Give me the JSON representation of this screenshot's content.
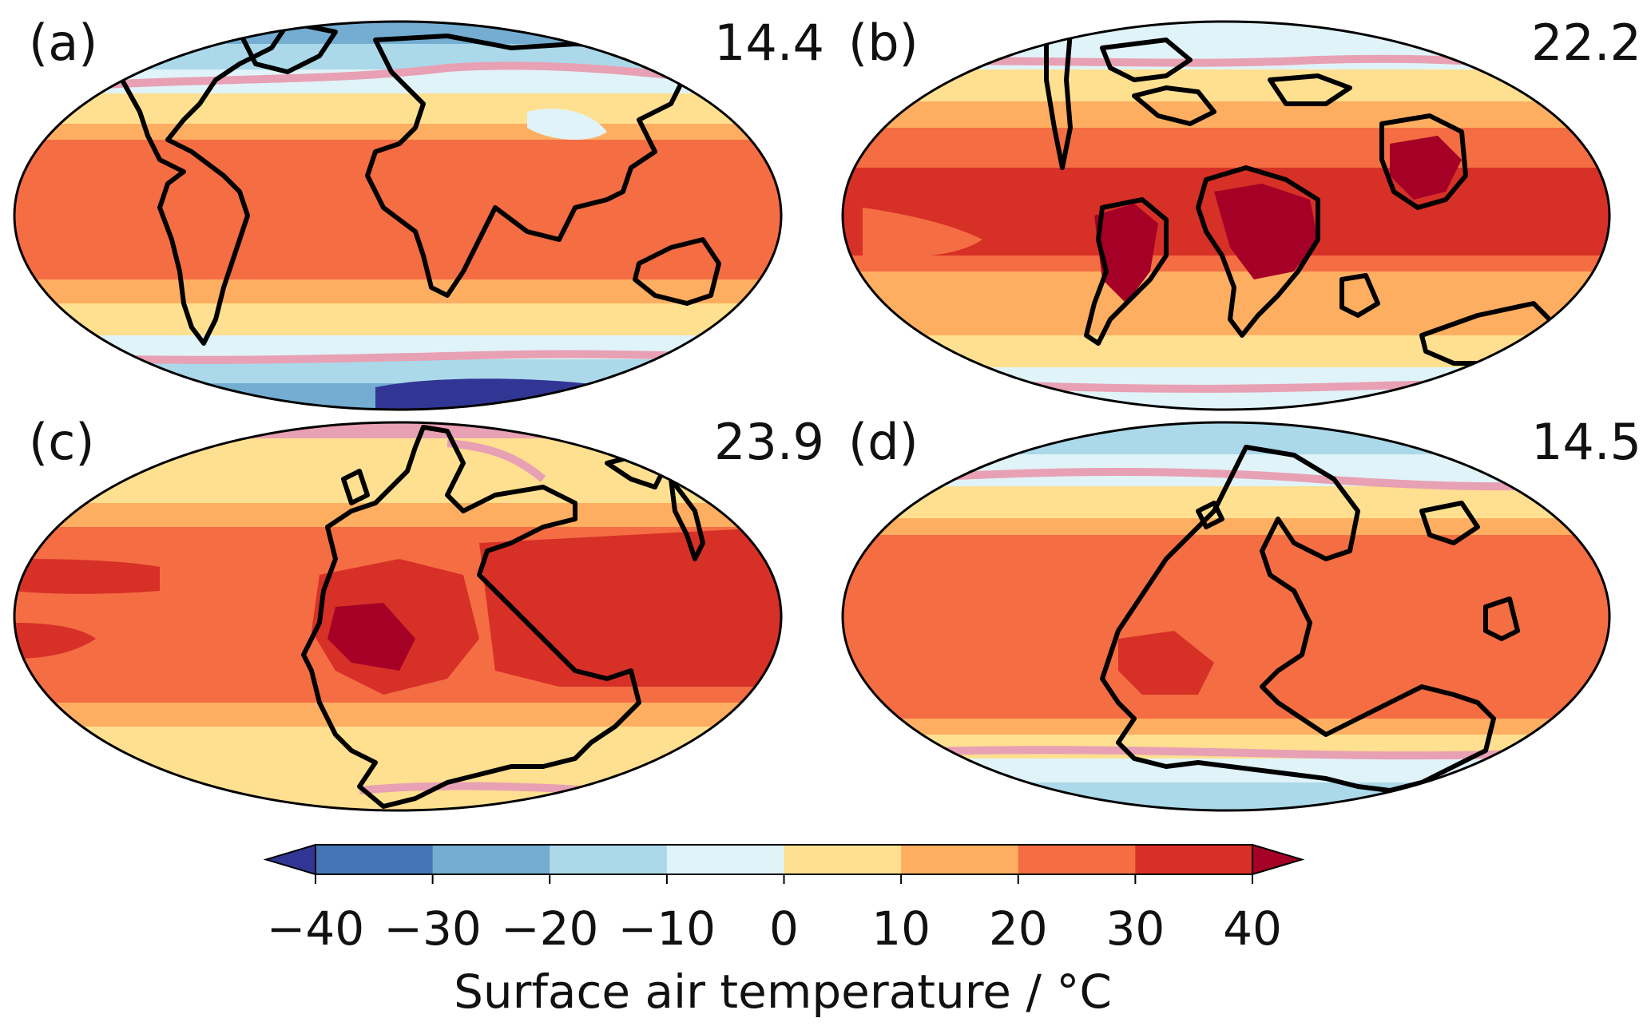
{
  "panels": [
    {
      "label": "(a)",
      "value": "14.4"
    },
    {
      "label": "(b)",
      "value": "22.2"
    },
    {
      "label": "(c)",
      "value": "23.9"
    },
    {
      "label": "(d)",
      "value": "14.5"
    }
  ],
  "colorbar": {
    "title": "Surface air temperature / °C",
    "ticks": [
      "−40",
      "−30",
      "−20",
      "−10",
      "0",
      "10",
      "20",
      "30",
      "40"
    ],
    "bins": [
      {
        "range": "<-40",
        "color": "#313695"
      },
      {
        "range": "-40 to -30",
        "color": "#4575b4"
      },
      {
        "range": "-30 to -20",
        "color": "#74add1"
      },
      {
        "range": "-20 to -10",
        "color": "#abd9e9"
      },
      {
        "range": "-10 to 0",
        "color": "#e0f3f8"
      },
      {
        "range": "0 to 10",
        "color": "#fee090"
      },
      {
        "range": "10 to 20",
        "color": "#fdae61"
      },
      {
        "range": "20 to 30",
        "color": "#f46d43"
      },
      {
        "range": "30 to 40",
        "color": "#d73027"
      },
      {
        "range": ">40",
        "color": "#a50026"
      }
    ],
    "contour_0C_color": "#e8a0b4"
  }
}
